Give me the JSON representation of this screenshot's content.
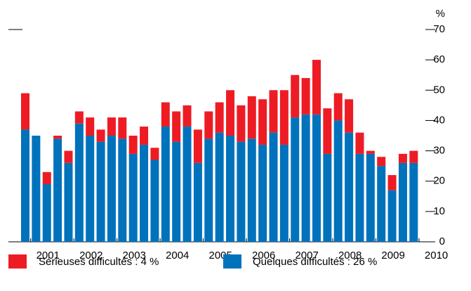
{
  "chart_data": {
    "type": "stacked-bar",
    "y_unit": "%",
    "categories": [
      null,
      null,
      null,
      null,
      null,
      null,
      null,
      null,
      null,
      null,
      null,
      null,
      null,
      null,
      null,
      null,
      null,
      null,
      null,
      null,
      null,
      null,
      null,
      null,
      null,
      null,
      null,
      null,
      null,
      null,
      null,
      null,
      null,
      null,
      null,
      null,
      null
    ],
    "year_labels": [
      "2001",
      "2002",
      "2003",
      "2004",
      "2005",
      "2006",
      "2007",
      "2008",
      "2009",
      "2010"
    ],
    "series": [
      {
        "name": "Quelques difficultés : 26 %",
        "color": "#0072bc",
        "values": [
          37,
          35,
          19,
          34,
          26,
          39,
          35,
          33,
          35,
          34,
          29,
          32,
          27,
          38,
          33,
          38,
          26,
          34,
          36,
          35,
          33,
          34,
          32,
          36,
          32,
          41,
          42,
          42,
          29,
          40,
          36,
          29,
          29,
          25,
          17,
          26,
          26
        ]
      },
      {
        "name": "Sérieuses difficultés : 4 %",
        "color": "#ed1c24",
        "values": [
          12,
          0,
          4,
          1,
          4,
          4,
          6,
          4,
          6,
          7,
          6,
          6,
          4,
          8,
          10,
          7,
          11,
          9,
          10,
          15,
          12,
          14,
          15,
          14,
          18,
          14,
          12,
          18,
          15,
          9,
          11,
          7,
          1,
          3,
          5,
          3,
          4
        ]
      }
    ],
    "ylim": [
      0,
      70
    ],
    "yticks": [
      0,
      10,
      20,
      30,
      40,
      50,
      60,
      70
    ]
  }
}
